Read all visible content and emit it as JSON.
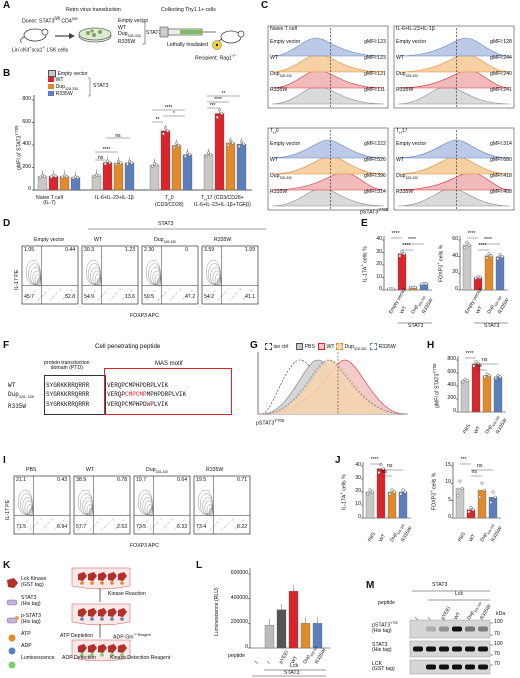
{
  "colors": {
    "empty": "#c8c8c8",
    "wt": "#d9262c",
    "dup": "#e08a2c",
    "r335w": "#5b7fbd",
    "iso": "#ffffff"
  },
  "A": {
    "label": "A",
    "donor": "Donor: STAT3",
    "donor_sup": "fl/fl",
    "donor_rest": " CD4",
    "donor_sup2": "cre",
    "cells": "Lin",
    "cells_rest": "cKit",
    "cells_rest2": "sca1",
    "cells_rest3": " LSK cells",
    "retro": "Retro virus transduction",
    "ev": "Empty vector",
    "wt": "WT",
    "dup": "Dup",
    "dup_sub": "328-330",
    "r335w": "R335W",
    "stat3": "STAT3",
    "collect": "Collecting Thy1.1+ cells",
    "irr": "Lethally irradiated",
    "recipient": "Recipient: Rag1",
    "recipient_sup": "-/-"
  },
  "B": {
    "label": "B",
    "ylabel": "gMFI of STAT3",
    "ylabel_sup": "Y705",
    "legend": [
      "Empty vector",
      "WT",
      "Dup",
      "R335W"
    ],
    "legend_stat3": "STAT3",
    "groups": [
      "Naive T cell\n(IL-7)",
      "IL-6+IL-23+IL-1β",
      "T",
      "T"
    ],
    "g3": "T",
    "g3_sub": "H",
    "g3_rest": "0",
    "g3_line2": "(CD3/CD28)",
    "g4": "T",
    "g4_sub": "H",
    "g4_rest": "17 (CD3/CD28+",
    "g4_line2": "IL-6+IL-23+IL-1β+TGFβ)",
    "g1": "Naive T cell",
    "g1_line2": "(IL-7)",
    "g2": "IL-6+IL-23+IL-1β",
    "yticks": [
      "0",
      "200",
      "400",
      "600",
      "800"
    ],
    "sig": [
      "ns",
      "****",
      "****",
      "*",
      "**",
      "****",
      "**",
      "***",
      "ns"
    ]
  },
  "C": {
    "label": "C",
    "panels": [
      {
        "title": "Naive T cell",
        "values": [
          "gMFI:123",
          "gMFI:123",
          "gMFI:121",
          "gMFI:111"
        ]
      },
      {
        "title": "IL-6+IL-23+IL-1β",
        "values": [
          "gMFI:128",
          "gMFI:244",
          "gMFI:240",
          "gMFI:241"
        ]
      },
      {
        "title": "T",
        "title_sub": "H",
        "title_rest": "0",
        "values": [
          "gMFI:222",
          "gMFI:526",
          "gMFI:396",
          "gMFI:314"
        ]
      },
      {
        "title": "T",
        "title_sub": "H",
        "title_rest": "17",
        "values": [
          "gMFI:314",
          "gMFI:680",
          "gMFI:418",
          "gMFI:408"
        ]
      }
    ],
    "rows": [
      "Empty vector",
      "WT",
      "Dup",
      "R335W"
    ],
    "rows_sub": "328-330",
    "xlabel": "pSTAT3",
    "xlabel_sup": "Y705"
  },
  "D": {
    "label": "D",
    "stat3": "STAT3",
    "titles": [
      "Empty vector",
      "WT",
      "Dup",
      "R335W"
    ],
    "dup_sub": "328-330",
    "quads": [
      [
        "1.05",
        "0.44",
        "45.7",
        "52.8"
      ],
      [
        "30.3",
        "1.23",
        "54.9",
        "13.6"
      ],
      [
        "2.30",
        "0",
        "50.5",
        "47.2"
      ],
      [
        "3.59",
        "1.09",
        "54.2",
        "41.1"
      ]
    ],
    "ylabel": "IL-17 PE",
    "xlabel": "FOXP3 APC"
  },
  "E": {
    "label": "E",
    "left": {
      "ylabel": "IL-17A",
      "ylabel_rest": " cells %",
      "yticks": [
        "0",
        "10",
        "20",
        "30",
        "40"
      ],
      "sig": [
        "****",
        "****",
        "****"
      ],
      "values": [
        0.8,
        29,
        2.2,
        5
      ]
    },
    "right": {
      "ylabel": "FOXP3",
      "ylabel_rest": " cells %",
      "yticks": [
        "0",
        "20",
        "40",
        "60"
      ],
      "sig": [
        "****",
        "****",
        "****"
      ],
      "values": [
        54,
        15,
        41,
        40
      ]
    },
    "xcats": [
      "Empty vector",
      "WT",
      "Dup",
      "R335W"
    ],
    "dup_sub": "328-330",
    "stat3": "STAT3"
  },
  "F": {
    "label": "F",
    "title": "Cell penetrating peptide",
    "ptd1": "protein transduction",
    "ptd2": "domain (PTD)",
    "mas": "MAS motif",
    "rows": [
      {
        "name": "WT",
        "sub": "",
        "seq1": "SYGRKKRRQRRR",
        "seq2": "VERQPCMPHPDRPLVIK",
        "red": ""
      },
      {
        "name": "Dup",
        "sub": "328-330",
        "seq1": "SYGRKKRRQRRR",
        "seq2a": "VERQP",
        "seq2red": "CMPCMP",
        "seq2b": "MPHPDRPLVIK"
      },
      {
        "name": "R335W",
        "sub": "",
        "seq1": "SYGRKKRRQRRR",
        "seq2a": "VERQPCMPHPD",
        "seq2red": "W",
        "seq2b": "PLVIK"
      }
    ]
  },
  "G": {
    "label": "G",
    "legend": [
      "iso ctrl",
      "PBS",
      "WT",
      "Dup",
      "R335W"
    ],
    "dup_sub": "328-330",
    "xlabel": "pSTAT3",
    "xlabel_sup": "Y705"
  },
  "H": {
    "label": "H",
    "ylabel": "gMFI of STAT3",
    "ylabel_sup": "Y705",
    "yticks": [
      "0",
      "200",
      "400",
      "600",
      "800"
    ],
    "xcats": [
      "PBS",
      "WT",
      "Dup",
      "R335W"
    ],
    "dup_sub": "328-330",
    "sig": [
      "****",
      "ns",
      "ns"
    ],
    "values": [
      480,
      740,
      560,
      540
    ]
  },
  "I": {
    "label": "I",
    "titles": [
      "PBS",
      "WT",
      "Dup",
      "R335W"
    ],
    "dup_sub": "328-330",
    "quads": [
      [
        "21.1",
        "0.43",
        "71.5",
        "6.94"
      ],
      [
        "38.9",
        "0.78",
        "57.7",
        "2.63"
      ],
      [
        "19.7",
        "0.64",
        "73.5",
        "6.33"
      ],
      [
        "19.5",
        "0.71",
        "73.4",
        "6.22"
      ]
    ],
    "ylabel": "IL-17 PE",
    "xlabel": "FOXP3 APC"
  },
  "J": {
    "label": "J",
    "left": {
      "ylabel": "IL-17A",
      "ylabel_rest": " cells %",
      "yticks": [
        "0",
        "10",
        "20",
        "30",
        "40"
      ],
      "sig": [
        "****",
        "ns",
        "ns"
      ],
      "values": [
        20,
        38,
        20,
        20
      ]
    },
    "right": {
      "ylabel": "FOXP3",
      "ylabel_rest": " cells %",
      "yticks": [
        "0",
        "5",
        "10",
        "15"
      ],
      "sig": [
        "***",
        "ns",
        "ns"
      ],
      "values": [
        8.5,
        2.4,
        8,
        6
      ]
    },
    "xcats": [
      "PBS",
      "WT",
      "Dup",
      "R335W"
    ],
    "dup_sub": "328-330"
  },
  "K": {
    "label": "K",
    "legend": [
      "Lck Kinase",
      "(GST tag)",
      "STAT3",
      "(His tag)",
      "p-STAT3",
      "(His tag)",
      "ATP",
      "ADP",
      "Luminescence"
    ],
    "steps": [
      "Kinase Reaction",
      "ATP Depletion",
      "ADP-Glo",
      "™ Reagent",
      "ADP Detection",
      "Kinase Detection Reagent"
    ]
  },
  "L": {
    "label": "L",
    "ylabel": "Luminescence (RLU)",
    "yticks": [
      "0",
      "200000",
      "400000",
      "600000"
    ],
    "xcats": [
      "/",
      "/",
      "pYEEI",
      "WT",
      "Dup",
      "R335W"
    ],
    "dup_sub": "328-330",
    "peptide": "peptide",
    "lck": "Lck",
    "stat3": "STAT3",
    "values": [
      0,
      185000,
      310000,
      460000,
      200000,
      200000
    ]
  },
  "M": {
    "label": "M",
    "stat3": "STAT3",
    "lck": "Lck",
    "peptide": "peptide",
    "cols": [
      "/",
      "/",
      "pYEEI",
      "WT",
      "Dup",
      "R335W"
    ],
    "dup_sub": "328-330",
    "rows": [
      "pSTAT3",
      "STAT3",
      "LCK"
    ],
    "rows_sup": "Y705",
    "rows_sub": [
      "(His tag)",
      "(His tag)",
      "(GST tag)"
    ],
    "kda": "kDa",
    "markers": [
      "100",
      "70",
      "100",
      "70",
      "70"
    ]
  }
}
